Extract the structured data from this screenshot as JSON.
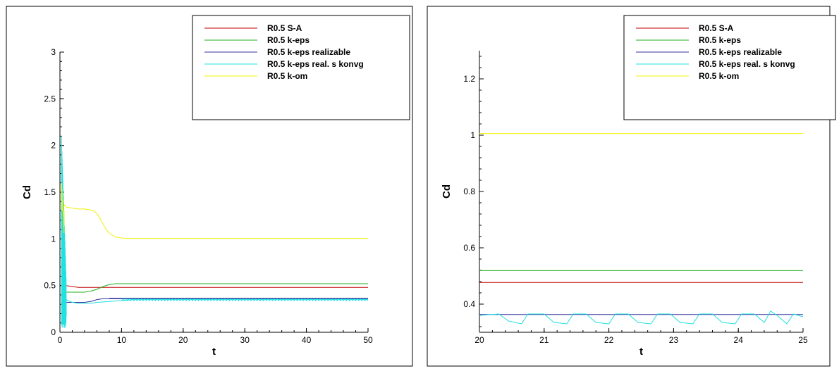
{
  "chart_data": [
    {
      "type": "line",
      "xlabel": "t",
      "ylabel": "Cd",
      "xlim": [
        0,
        50
      ],
      "ylim": [
        0,
        3
      ],
      "xticks": [
        0,
        10,
        20,
        30,
        40,
        50
      ],
      "xtick_labels": [
        "0",
        "10",
        "20",
        "30",
        "40",
        "50"
      ],
      "yticks": [
        0,
        0.5,
        1,
        1.5,
        2,
        2.5,
        3
      ],
      "ytick_labels": [
        "0",
        "0.5",
        "1",
        "1.5",
        "2",
        "2.5",
        "3"
      ],
      "grid": false,
      "legend_position": "top-right",
      "series": [
        {
          "name": "R0.5 S-A",
          "color": "#c00000",
          "x": [
            0.3,
            0.5,
            1,
            2,
            3,
            4,
            5,
            50
          ],
          "y": [
            0.5,
            0.55,
            0.5,
            0.49,
            0.48,
            0.48,
            0.48,
            0.48
          ]
        },
        {
          "name": "R0.5 k-eps",
          "color": "#20b020",
          "x": [
            0.3,
            0.6,
            1,
            2,
            4,
            5,
            6,
            7,
            8,
            9,
            10,
            50
          ],
          "y": [
            0.5,
            0.45,
            0.43,
            0.43,
            0.43,
            0.44,
            0.46,
            0.49,
            0.51,
            0.52,
            0.52,
            0.52
          ]
        },
        {
          "name": "R0.5 k-eps realizable",
          "color": "#3030a0",
          "x": [
            0.3,
            0.6,
            1,
            2,
            3,
            4,
            5,
            6,
            7,
            8,
            50
          ],
          "y": [
            0.35,
            0.33,
            0.32,
            0.32,
            0.32,
            0.32,
            0.33,
            0.35,
            0.36,
            0.36,
            0.36
          ]
        },
        {
          "name": "R0.5 k-eps real. s konvg",
          "color": "#20e0e0",
          "x": [
            0.5,
            0.7,
            1,
            2,
            3,
            4,
            5,
            6,
            8,
            10,
            12,
            15,
            50
          ],
          "y": [
            0.6,
            0.45,
            0.35,
            0.32,
            0.31,
            0.31,
            0.31,
            0.32,
            0.33,
            0.34,
            0.35,
            0.35,
            0.35
          ]
        },
        {
          "name": "R0.5 k-om",
          "color": "#f0f000",
          "x": [
            0.3,
            0.5,
            1,
            2,
            3,
            4,
            5,
            5.5,
            6,
            6.5,
            7,
            7.5,
            8,
            9,
            10,
            11,
            12,
            50
          ],
          "y": [
            1.5,
            1.38,
            1.34,
            1.33,
            1.32,
            1.32,
            1.31,
            1.3,
            1.27,
            1.22,
            1.16,
            1.1,
            1.06,
            1.02,
            1.01,
            1.005,
            1.005,
            1.005
          ]
        }
      ]
    },
    {
      "type": "line",
      "xlabel": "t",
      "ylabel": "Cd",
      "xlim": [
        20,
        25
      ],
      "ylim": [
        0.3,
        1.3
      ],
      "xticks": [
        20,
        21,
        22,
        23,
        24,
        25
      ],
      "xtick_labels": [
        "20",
        "21",
        "22",
        "23",
        "24",
        "25"
      ],
      "yticks": [
        0.4,
        0.6,
        0.8,
        1,
        1.2
      ],
      "ytick_labels": [
        "0.4",
        "0.6",
        "0.8",
        "1",
        "1.2"
      ],
      "grid": false,
      "legend_position": "top-right",
      "series": [
        {
          "name": "R0.5 S-A",
          "color": "#c00000",
          "x": [
            20,
            25
          ],
          "y": [
            0.477,
            0.477
          ]
        },
        {
          "name": "R0.5 k-eps",
          "color": "#20b020",
          "x": [
            20,
            25
          ],
          "y": [
            0.519,
            0.519
          ]
        },
        {
          "name": "R0.5 k-eps realizable",
          "color": "#3030a0",
          "x": [
            20,
            25
          ],
          "y": [
            0.363,
            0.363
          ]
        },
        {
          "name": "R0.5 k-eps real. s konvg",
          "color": "#20e0e0",
          "x": [
            20,
            20.3,
            20.45,
            20.65,
            20.75,
            21.0,
            21.15,
            21.35,
            21.45,
            21.65,
            21.8,
            22.0,
            22.1,
            22.3,
            22.45,
            22.65,
            22.75,
            22.95,
            23.1,
            23.3,
            23.4,
            23.6,
            23.75,
            23.95,
            24.05,
            24.25,
            24.4,
            24.5,
            24.6,
            24.75,
            24.85,
            25
          ],
          "y": [
            0.36,
            0.365,
            0.34,
            0.33,
            0.365,
            0.365,
            0.335,
            0.33,
            0.365,
            0.365,
            0.335,
            0.33,
            0.365,
            0.365,
            0.335,
            0.33,
            0.365,
            0.365,
            0.335,
            0.33,
            0.365,
            0.365,
            0.335,
            0.33,
            0.365,
            0.365,
            0.335,
            0.375,
            0.36,
            0.33,
            0.365,
            0.355
          ]
        },
        {
          "name": "R0.5 k-om",
          "color": "#f0f000",
          "x": [
            20,
            25
          ],
          "y": [
            1.006,
            1.006
          ]
        }
      ]
    }
  ]
}
